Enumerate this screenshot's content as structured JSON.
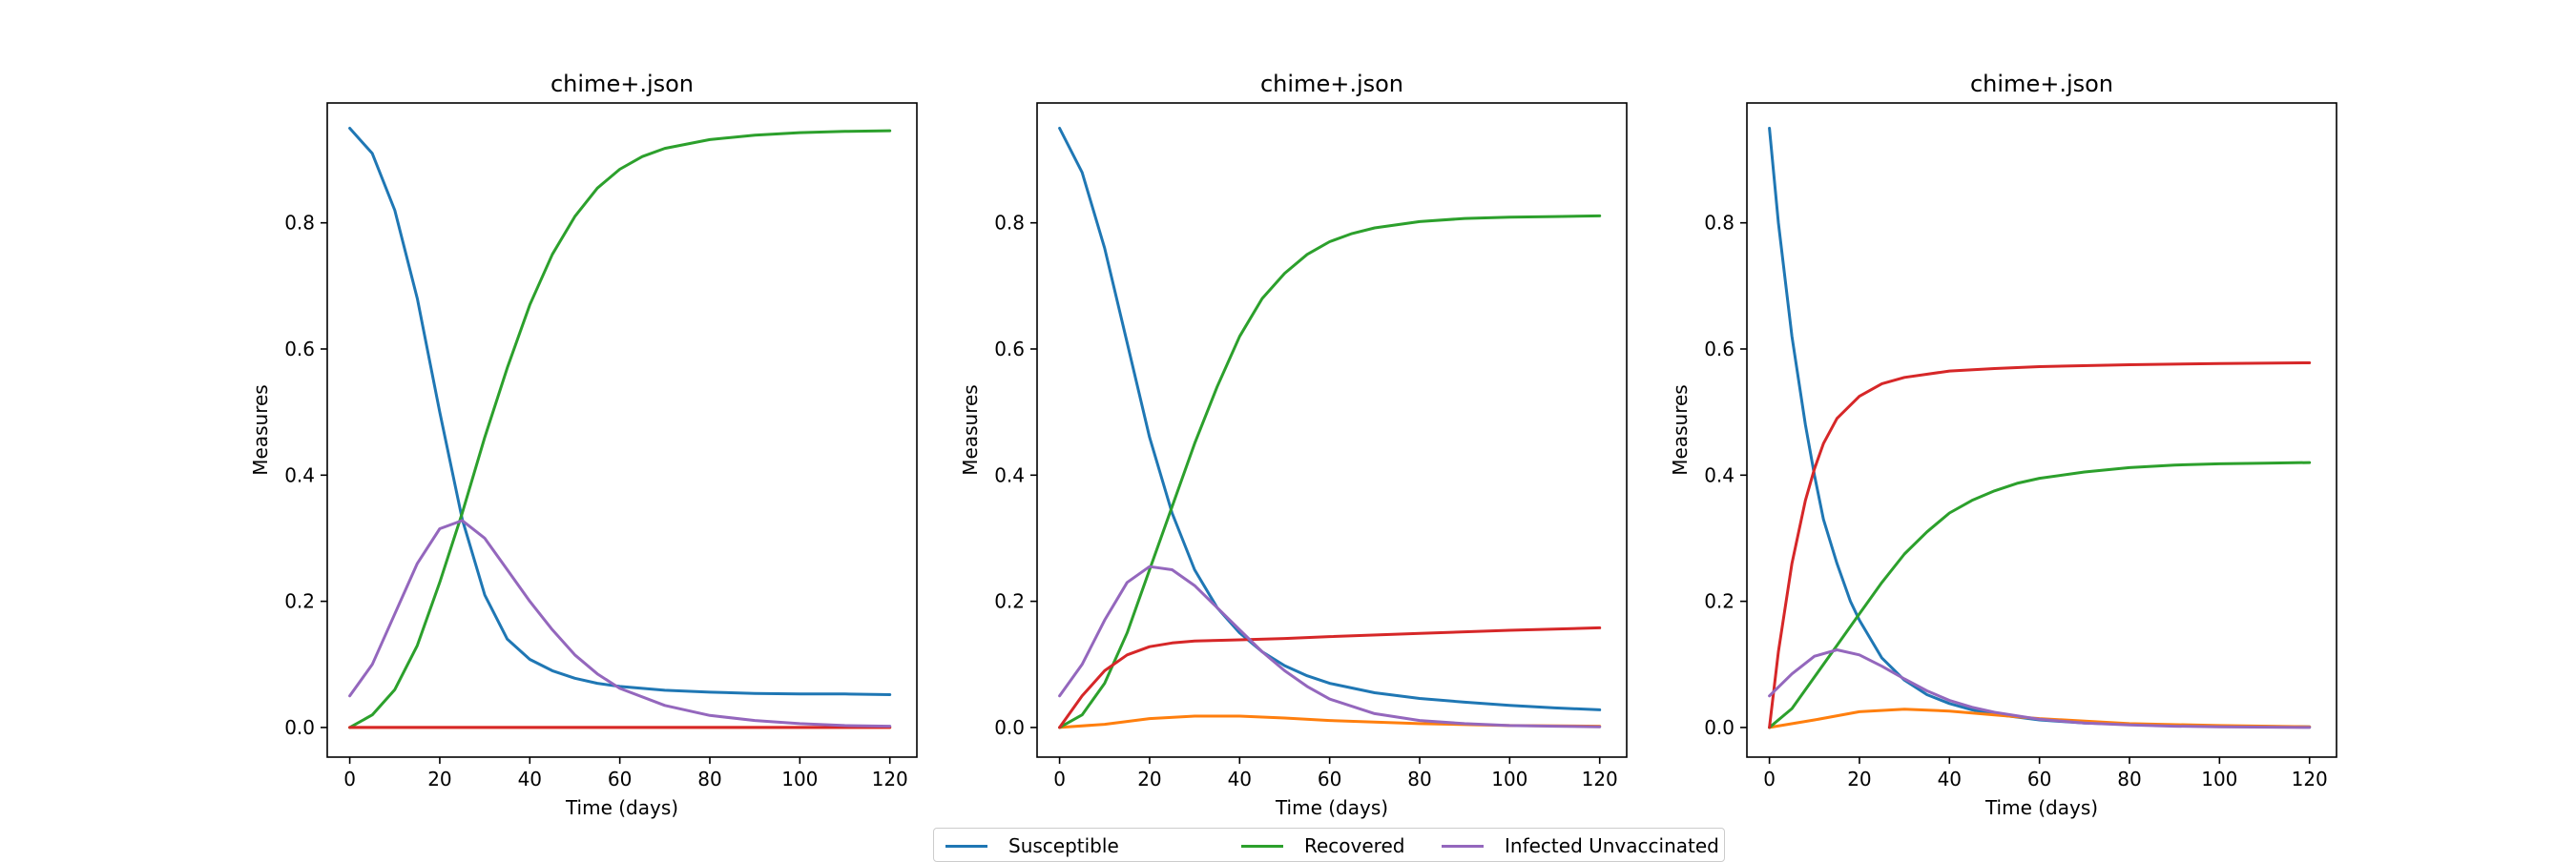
{
  "chart_data": [
    {
      "type": "line",
      "title": "chime+.json",
      "xlabel": "Time (days)",
      "ylabel": "Measures",
      "xlim": [
        -5,
        126
      ],
      "ylim": [
        -0.047,
        0.99
      ],
      "xticks": [
        0,
        20,
        40,
        60,
        80,
        100,
        120
      ],
      "yticks": [
        0.0,
        0.2,
        0.4,
        0.6,
        0.8
      ],
      "grid": false,
      "series": [
        {
          "name": "Susceptible",
          "color": "#1f77b4",
          "x": [
            0,
            5,
            10,
            15,
            20,
            25,
            30,
            35,
            40,
            45,
            50,
            55,
            60,
            70,
            80,
            90,
            100,
            110,
            120
          ],
          "y": [
            0.95,
            0.91,
            0.82,
            0.68,
            0.5,
            0.33,
            0.21,
            0.14,
            0.108,
            0.09,
            0.078,
            0.07,
            0.065,
            0.059,
            0.056,
            0.054,
            0.053,
            0.053,
            0.052
          ]
        },
        {
          "color": "#ff7f0e",
          "x": [
            0,
            20,
            40,
            60,
            80,
            100,
            120
          ],
          "y": [
            0.0,
            0.0,
            0.0,
            0.0,
            0.0,
            0.0,
            0.0
          ]
        },
        {
          "name": "Recovered",
          "color": "#2ca02c",
          "x": [
            0,
            5,
            10,
            15,
            20,
            25,
            30,
            35,
            40,
            45,
            50,
            55,
            60,
            65,
            70,
            80,
            90,
            100,
            110,
            120
          ],
          "y": [
            0.0,
            0.02,
            0.06,
            0.13,
            0.23,
            0.34,
            0.46,
            0.57,
            0.67,
            0.75,
            0.81,
            0.855,
            0.885,
            0.905,
            0.918,
            0.932,
            0.939,
            0.943,
            0.945,
            0.946
          ]
        },
        {
          "color": "#d62728",
          "x": [
            0,
            20,
            40,
            60,
            80,
            100,
            120
          ],
          "y": [
            0.0,
            0.0,
            0.0,
            0.0,
            0.0,
            0.0,
            0.0
          ]
        },
        {
          "name": "Infected Unvaccinated",
          "color": "#9467bd",
          "x": [
            0,
            5,
            10,
            15,
            20,
            25,
            30,
            35,
            40,
            45,
            50,
            55,
            60,
            70,
            80,
            90,
            100,
            110,
            120
          ],
          "y": [
            0.05,
            0.1,
            0.18,
            0.26,
            0.315,
            0.328,
            0.3,
            0.25,
            0.2,
            0.155,
            0.115,
            0.085,
            0.062,
            0.035,
            0.019,
            0.011,
            0.006,
            0.003,
            0.002
          ]
        }
      ]
    },
    {
      "type": "line",
      "title": "chime+.json",
      "xlabel": "Time (days)",
      "ylabel": "Measures",
      "xlim": [
        -5,
        126
      ],
      "ylim": [
        -0.047,
        0.99
      ],
      "xticks": [
        0,
        20,
        40,
        60,
        80,
        100,
        120
      ],
      "yticks": [
        0.0,
        0.2,
        0.4,
        0.6,
        0.8
      ],
      "grid": false,
      "series": [
        {
          "name": "Susceptible",
          "color": "#1f77b4",
          "x": [
            0,
            5,
            10,
            15,
            20,
            25,
            30,
            35,
            40,
            45,
            50,
            55,
            60,
            70,
            80,
            90,
            100,
            110,
            120
          ],
          "y": [
            0.95,
            0.88,
            0.76,
            0.61,
            0.46,
            0.34,
            0.25,
            0.19,
            0.15,
            0.12,
            0.098,
            0.082,
            0.07,
            0.055,
            0.046,
            0.04,
            0.035,
            0.031,
            0.028
          ]
        },
        {
          "color": "#ff7f0e",
          "x": [
            0,
            10,
            20,
            30,
            40,
            50,
            60,
            80,
            100,
            120
          ],
          "y": [
            0.0,
            0.005,
            0.014,
            0.018,
            0.018,
            0.015,
            0.011,
            0.006,
            0.003,
            0.002
          ]
        },
        {
          "name": "Recovered",
          "color": "#2ca02c",
          "x": [
            0,
            5,
            10,
            15,
            20,
            25,
            30,
            35,
            40,
            45,
            50,
            55,
            60,
            65,
            70,
            80,
            90,
            100,
            110,
            120
          ],
          "y": [
            0.0,
            0.02,
            0.07,
            0.15,
            0.25,
            0.35,
            0.45,
            0.54,
            0.62,
            0.68,
            0.72,
            0.75,
            0.77,
            0.783,
            0.792,
            0.802,
            0.807,
            0.809,
            0.81,
            0.811
          ]
        },
        {
          "color": "#d62728",
          "x": [
            0,
            5,
            10,
            15,
            20,
            25,
            30,
            35,
            40,
            50,
            60,
            80,
            100,
            120
          ],
          "y": [
            0.0,
            0.05,
            0.09,
            0.115,
            0.128,
            0.134,
            0.137,
            0.138,
            0.139,
            0.141,
            0.144,
            0.149,
            0.154,
            0.158
          ]
        },
        {
          "name": "Infected Unvaccinated",
          "color": "#9467bd",
          "x": [
            0,
            5,
            10,
            15,
            20,
            25,
            30,
            35,
            40,
            45,
            50,
            55,
            60,
            70,
            80,
            90,
            100,
            110,
            120
          ],
          "y": [
            0.05,
            0.1,
            0.17,
            0.23,
            0.255,
            0.25,
            0.225,
            0.19,
            0.155,
            0.12,
            0.09,
            0.065,
            0.045,
            0.022,
            0.011,
            0.006,
            0.003,
            0.002,
            0.001
          ]
        }
      ]
    },
    {
      "type": "line",
      "title": "chime+.json",
      "xlabel": "Time (days)",
      "ylabel": "Measures",
      "xlim": [
        -5,
        126
      ],
      "ylim": [
        -0.047,
        0.99
      ],
      "xticks": [
        0,
        20,
        40,
        60,
        80,
        100,
        120
      ],
      "yticks": [
        0.0,
        0.2,
        0.4,
        0.6,
        0.8
      ],
      "grid": false,
      "series": [
        {
          "name": "Susceptible",
          "color": "#1f77b4",
          "x": [
            0,
            2,
            5,
            8,
            10,
            12,
            15,
            18,
            20,
            25,
            30,
            35,
            40,
            45,
            50,
            60,
            70,
            80,
            90,
            100,
            120
          ],
          "y": [
            0.95,
            0.8,
            0.62,
            0.48,
            0.4,
            0.33,
            0.26,
            0.2,
            0.17,
            0.11,
            0.075,
            0.052,
            0.038,
            0.028,
            0.021,
            0.012,
            0.007,
            0.005,
            0.003,
            0.002,
            0.001
          ]
        },
        {
          "color": "#ff7f0e",
          "x": [
            0,
            10,
            20,
            30,
            40,
            50,
            60,
            80,
            100,
            120
          ],
          "y": [
            0.0,
            0.012,
            0.025,
            0.029,
            0.026,
            0.02,
            0.014,
            0.006,
            0.003,
            0.001
          ]
        },
        {
          "name": "Recovered",
          "color": "#2ca02c",
          "x": [
            0,
            5,
            10,
            15,
            20,
            25,
            30,
            35,
            40,
            45,
            50,
            55,
            60,
            70,
            80,
            90,
            100,
            110,
            120
          ],
          "y": [
            0.0,
            0.03,
            0.08,
            0.13,
            0.18,
            0.23,
            0.275,
            0.31,
            0.34,
            0.36,
            0.375,
            0.387,
            0.395,
            0.405,
            0.412,
            0.416,
            0.418,
            0.419,
            0.42
          ]
        },
        {
          "color": "#d62728",
          "x": [
            0,
            2,
            5,
            8,
            10,
            12,
            15,
            20,
            25,
            30,
            40,
            50,
            60,
            80,
            100,
            120
          ],
          "y": [
            0.0,
            0.12,
            0.26,
            0.36,
            0.41,
            0.45,
            0.49,
            0.525,
            0.545,
            0.555,
            0.565,
            0.569,
            0.572,
            0.575,
            0.577,
            0.578
          ]
        },
        {
          "name": "Infected Unvaccinated",
          "color": "#9467bd",
          "x": [
            0,
            5,
            10,
            15,
            20,
            25,
            30,
            35,
            40,
            45,
            50,
            60,
            70,
            80,
            90,
            100,
            120
          ],
          "y": [
            0.05,
            0.085,
            0.113,
            0.123,
            0.115,
            0.097,
            0.077,
            0.058,
            0.043,
            0.032,
            0.024,
            0.013,
            0.007,
            0.004,
            0.002,
            0.001,
            0.0
          ]
        }
      ]
    }
  ],
  "legend": {
    "placement": "bottom-center",
    "entries": [
      {
        "label": "Susceptible",
        "color": "#1f77b4"
      },
      {
        "label": "Recovered",
        "color": "#2ca02c"
      },
      {
        "label": "Infected Unvaccinated",
        "color": "#9467bd"
      }
    ]
  }
}
